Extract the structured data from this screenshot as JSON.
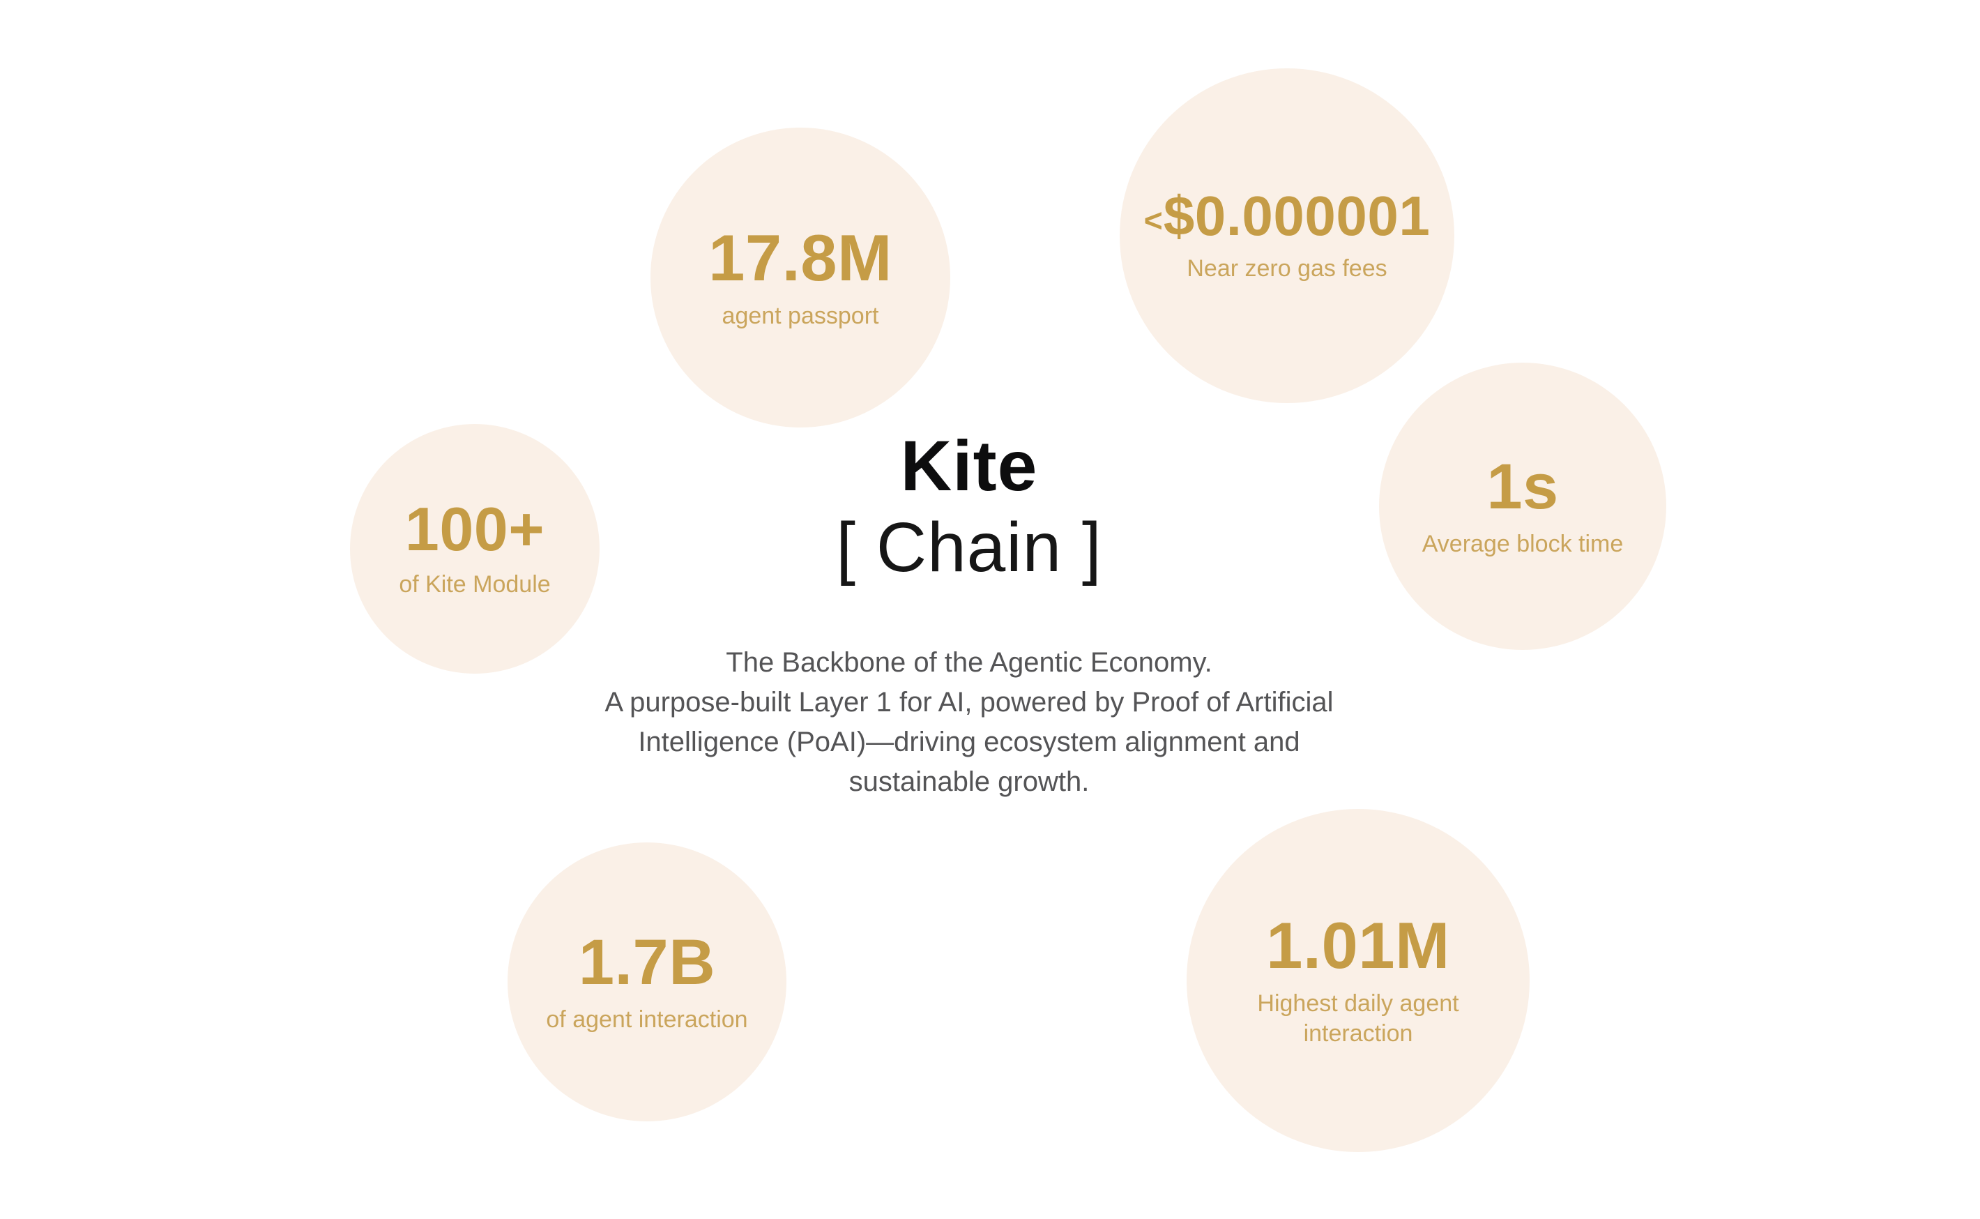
{
  "header": {
    "title": "Kite",
    "subtitle": "[ Chain ]"
  },
  "description": {
    "lines": [
      "The Backbone of the Agentic Economy.",
      "A purpose-built Layer 1 for AI, powered by Proof of Artificial",
      "Intelligence (PoAI)—driving ecosystem alignment and",
      "sustainable growth."
    ]
  },
  "stats": [
    {
      "id": "agent-passport",
      "value": "17.8M",
      "label": "agent passport"
    },
    {
      "id": "near-zero-gas-fees",
      "value_prefix": "<",
      "value": "$0.000001",
      "label": "Near zero gas fees"
    },
    {
      "id": "kite-module",
      "value": "100+",
      "label": "of Kite Module"
    },
    {
      "id": "average-block-time",
      "value": "1s",
      "label": "Average block time"
    },
    {
      "id": "agent-interaction",
      "value": "1.7B",
      "label": "of agent interaction"
    },
    {
      "id": "highest-daily-agent-interaction",
      "value": "1.01M",
      "label": "Highest daily agent interaction"
    }
  ],
  "colors": {
    "accent_gold_value": "#C59C46",
    "accent_gold_label": "#CAA55C",
    "circle_background": "#FAF0E7",
    "title_black": "#0D0D0E",
    "body_gray": "#545456",
    "page_background": "#FFFFFF"
  }
}
